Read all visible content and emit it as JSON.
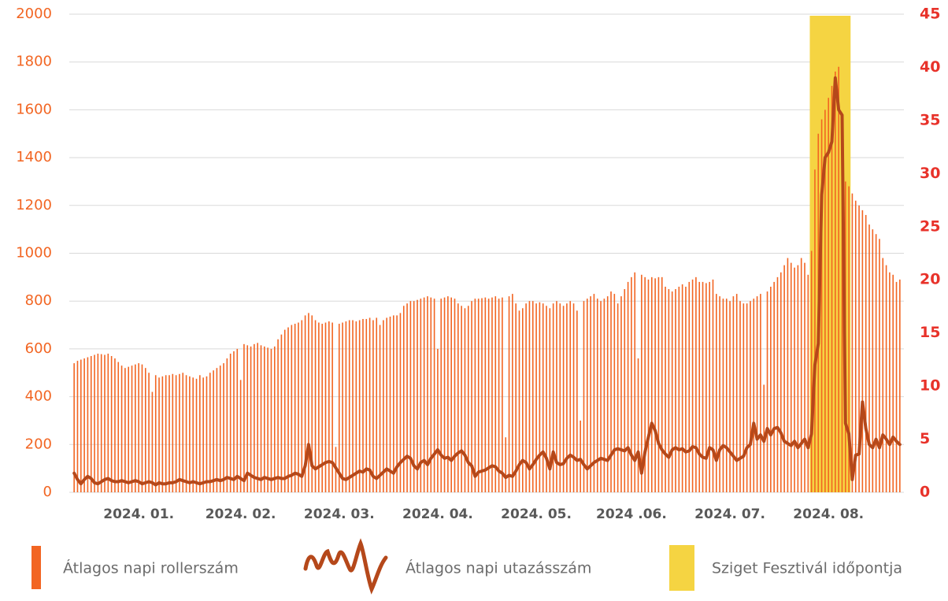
{
  "chart_data": {
    "type": "bar_line",
    "categories": [
      null,
      null,
      null,
      null,
      null,
      null,
      null,
      null,
      null,
      null,
      null,
      null,
      null,
      null,
      null,
      null,
      null,
      null,
      null,
      "2024. 01.",
      null,
      null,
      null,
      null,
      null,
      null,
      null,
      null,
      null,
      null,
      null,
      null,
      null,
      null,
      null,
      null,
      null,
      null,
      null,
      null,
      null,
      null,
      null,
      null,
      null,
      null,
      null,
      null,
      null,
      "2024. 02.",
      null,
      null,
      null,
      null,
      null,
      null,
      null,
      null,
      null,
      null,
      null,
      null,
      null,
      null,
      null,
      null,
      null,
      null,
      null,
      null,
      null,
      null,
      null,
      null,
      null,
      null,
      null,
      null,
      "2024. 03.",
      null,
      null,
      null,
      null,
      null,
      null,
      null,
      null,
      null,
      null,
      null,
      null,
      null,
      null,
      null,
      null,
      null,
      null,
      null,
      null,
      null,
      null,
      null,
      null,
      null,
      null,
      null,
      null,
      "2024. 04.",
      null,
      null,
      null,
      null,
      null,
      null,
      null,
      null,
      null,
      null,
      null,
      null,
      null,
      null,
      null,
      null,
      null,
      null,
      null,
      null,
      null,
      null,
      null,
      null,
      null,
      null,
      null,
      null,
      "2024. 05.",
      null,
      null,
      null,
      null,
      null,
      null,
      null,
      null,
      null,
      null,
      null,
      null,
      null,
      null,
      null,
      null,
      null,
      null,
      null,
      null,
      null,
      null,
      null,
      null,
      null,
      null,
      null,
      "2024 .06.",
      null,
      null,
      null,
      null,
      null,
      null,
      null,
      null,
      null,
      null,
      null,
      null,
      null,
      null,
      null,
      null,
      null,
      null,
      null,
      null,
      null,
      null,
      null,
      null,
      null,
      null,
      null,
      null,
      "2024. 07.",
      null,
      null,
      null,
      null,
      null,
      null,
      null,
      null,
      null,
      null,
      null,
      null,
      null,
      null,
      null,
      null,
      null,
      null,
      null,
      null,
      null,
      null,
      null,
      null,
      null,
      null,
      null,
      null,
      "2024. 08.",
      null,
      null,
      null,
      null,
      null,
      null,
      null,
      null,
      null,
      null,
      null,
      null,
      null,
      null,
      null,
      null,
      null,
      null,
      null,
      null,
      null
    ],
    "series": [
      {
        "name": "Átlagos napi rollerszám",
        "color": "#f26522",
        "kind": "bar",
        "axis": "y",
        "values": [
          540,
          550,
          555,
          560,
          565,
          570,
          575,
          580,
          578,
          575,
          580,
          570,
          560,
          545,
          530,
          520,
          525,
          530,
          535,
          540,
          535,
          520,
          500,
          420,
          490,
          480,
          485,
          490,
          490,
          495,
          490,
          495,
          500,
          490,
          485,
          480,
          475,
          490,
          480,
          485,
          500,
          510,
          520,
          530,
          540,
          560,
          580,
          590,
          600,
          470,
          620,
          615,
          610,
          620,
          625,
          615,
          610,
          605,
          600,
          610,
          640,
          660,
          680,
          690,
          700,
          705,
          710,
          720,
          740,
          750,
          740,
          720,
          710,
          705,
          710,
          715,
          710,
          190,
          705,
          710,
          715,
          720,
          720,
          715,
          720,
          725,
          725,
          730,
          720,
          730,
          700,
          720,
          730,
          735,
          740,
          740,
          750,
          780,
          790,
          800,
          800,
          805,
          810,
          815,
          820,
          815,
          810,
          600,
          810,
          815,
          820,
          815,
          810,
          790,
          780,
          770,
          780,
          800,
          810,
          810,
          812,
          815,
          810,
          815,
          820,
          810,
          815,
          230,
          820,
          830,
          790,
          760,
          770,
          790,
          800,
          800,
          790,
          795,
          790,
          780,
          770,
          790,
          800,
          790,
          780,
          790,
          800,
          790,
          760,
          300,
          800,
          810,
          820,
          830,
          810,
          800,
          810,
          820,
          840,
          830,
          790,
          820,
          850,
          880,
          900,
          920,
          560,
          910,
          900,
          890,
          900,
          895,
          900,
          900,
          860,
          850,
          840,
          850,
          860,
          870,
          860,
          880,
          890,
          900,
          880,
          880,
          875,
          880,
          890,
          830,
          820,
          810,
          810,
          800,
          820,
          830,
          800,
          790,
          790,
          800,
          810,
          820,
          830,
          450,
          840,
          860,
          880,
          900,
          920,
          950,
          980,
          960,
          940,
          950,
          980,
          960,
          910,
          1010,
          1350,
          1500,
          1560,
          1600,
          1650,
          1700,
          1760,
          1780,
          1500,
          1300,
          1280,
          1250,
          1220,
          1200,
          1180,
          1160,
          1120,
          1100,
          1080,
          1060,
          980,
          950,
          920,
          910,
          880,
          890
        ]
      },
      {
        "name": "Átlagos napi utazásszám",
        "color": "#b5481a",
        "kind": "line",
        "axis": "y2",
        "values": [
          1.8,
          1.2,
          0.8,
          1.2,
          1.5,
          1.3,
          0.9,
          0.8,
          1.0,
          1.2,
          1.3,
          1.1,
          1.0,
          1.0,
          1.1,
          1.0,
          0.9,
          1.0,
          1.1,
          1.0,
          0.8,
          0.9,
          1.0,
          0.9,
          0.7,
          0.9,
          0.8,
          0.8,
          0.9,
          0.9,
          1.0,
          1.2,
          1.1,
          1.0,
          0.9,
          1.0,
          0.9,
          0.8,
          0.9,
          1.0,
          1.0,
          1.1,
          1.2,
          1.1,
          1.2,
          1.4,
          1.3,
          1.2,
          1.5,
          1.3,
          1.1,
          1.8,
          1.6,
          1.4,
          1.3,
          1.2,
          1.4,
          1.3,
          1.2,
          1.3,
          1.4,
          1.3,
          1.3,
          1.5,
          1.6,
          1.8,
          1.7,
          1.5,
          2.5,
          4.5,
          2.5,
          2.2,
          2.4,
          2.6,
          2.8,
          2.9,
          2.8,
          2.3,
          1.8,
          1.3,
          1.2,
          1.4,
          1.6,
          1.8,
          2.0,
          1.9,
          2.2,
          2.1,
          1.5,
          1.3,
          1.6,
          1.9,
          2.2,
          2.0,
          1.8,
          2.4,
          2.8,
          3.1,
          3.4,
          3.2,
          2.5,
          2.2,
          2.8,
          3.0,
          2.6,
          3.2,
          3.6,
          4.0,
          3.5,
          3.2,
          3.3,
          3.0,
          3.4,
          3.7,
          3.9,
          3.5,
          2.8,
          2.5,
          1.5,
          1.9,
          2.0,
          2.1,
          2.3,
          2.5,
          2.4,
          2.0,
          1.8,
          1.4,
          1.6,
          1.5,
          2.0,
          2.6,
          3.0,
          2.8,
          2.2,
          2.6,
          3.1,
          3.5,
          3.8,
          3.2,
          2.2,
          3.8,
          2.8,
          2.6,
          2.7,
          3.2,
          3.5,
          3.3,
          3.0,
          3.1,
          2.6,
          2.2,
          2.5,
          2.8,
          3.0,
          3.2,
          3.1,
          3.0,
          3.5,
          4.0,
          4.1,
          4.0,
          3.9,
          4.2,
          3.5,
          3.0,
          3.8,
          1.8,
          3.8,
          5.2,
          6.5,
          5.8,
          4.6,
          4.0,
          3.6,
          3.3,
          4.0,
          4.2,
          4.0,
          4.1,
          3.8,
          3.9,
          4.3,
          4.2,
          3.6,
          3.3,
          3.2,
          4.2,
          4.0,
          3.0,
          4.0,
          4.4,
          4.2,
          3.8,
          3.4,
          3.0,
          3.2,
          3.4,
          4.2,
          4.5,
          6.5,
          5.0,
          5.4,
          4.8,
          6.0,
          5.4,
          6.0,
          6.1,
          5.6,
          4.8,
          4.6,
          4.4,
          4.8,
          4.2,
          4.6,
          5.0,
          4.2,
          5.5,
          12.0,
          14.0,
          28.0,
          31.5,
          32.0,
          33.0,
          39.0,
          36.0,
          35.5,
          6.5,
          5.5,
          1.2,
          3.5,
          3.6,
          8.5,
          6.0,
          4.5,
          4.2,
          5.0,
          4.2,
          5.4,
          5.0,
          4.5,
          5.2,
          4.8,
          4.5
        ]
      }
    ],
    "highlight": {
      "name": "Sziget Fesztivál időpontja",
      "color": "#f5d442",
      "range": [
        217,
        228
      ]
    },
    "ylim": [
      0,
      2000
    ],
    "yticks": [
      0,
      200,
      400,
      600,
      800,
      1000,
      1200,
      1400,
      1600,
      1800,
      2000
    ],
    "y2lim": [
      0,
      45
    ],
    "y2ticks": [
      0,
      5,
      10,
      15,
      20,
      25,
      30,
      35,
      40,
      45
    ],
    "grid": true
  }
}
